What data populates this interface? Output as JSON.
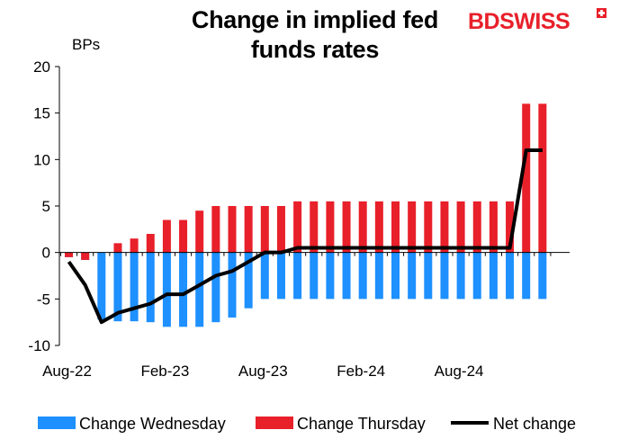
{
  "logo": {
    "bold_part": "BD",
    "rest_part": "SWISS"
  },
  "chart_data": {
    "type": "bar",
    "title_lines": [
      "Change in implied fed",
      "funds rates"
    ],
    "ylabel": "BPs",
    "ylim": [
      -10,
      20
    ],
    "yticks": [
      20,
      15,
      10,
      5,
      0,
      -5,
      -10
    ],
    "x_tick_labels": [
      {
        "index": 0,
        "label": "Aug-22"
      },
      {
        "index": 6,
        "label": "Feb-23"
      },
      {
        "index": 12,
        "label": "Aug-23"
      },
      {
        "index": 18,
        "label": "Feb-24"
      },
      {
        "index": 24,
        "label": "Aug-24"
      }
    ],
    "categories": [
      "Aug-22",
      "Sep-22",
      "Oct-22",
      "Nov-22",
      "Dec-22",
      "Jan-23",
      "Feb-23",
      "Mar-23",
      "Apr-23",
      "May-23",
      "Jun-23",
      "Jul-23",
      "Aug-23",
      "Sep-23",
      "Oct-23",
      "Nov-23",
      "Dec-23",
      "Jan-24",
      "Feb-24",
      "Mar-24",
      "Apr-24",
      "May-24",
      "Jun-24",
      "Jul-24",
      "Aug-24",
      "Sep-24",
      "Oct-24",
      "Nov-24",
      "Dec-24",
      "Jan-25"
    ],
    "series": [
      {
        "name": "Change Wednesday",
        "type": "bar",
        "color": "#1E90FF",
        "values": [
          -0.5,
          -0.8,
          -7.2,
          -7.4,
          -7.4,
          -7.5,
          -8,
          -8,
          -8,
          -7.5,
          -7,
          -6,
          -5,
          -5,
          -5,
          -5,
          -5,
          -5,
          -5,
          -5,
          -5,
          -5,
          -5,
          -5,
          -5,
          -5,
          -5,
          -5,
          -5,
          -5
        ]
      },
      {
        "name": "Change Thursday",
        "type": "bar",
        "color": "#E8202A",
        "values": [
          -0.5,
          -0.8,
          0,
          1,
          1.5,
          2,
          3.5,
          3.5,
          4.5,
          5,
          5,
          5,
          5,
          5,
          5.5,
          5.5,
          5.5,
          5.5,
          5.5,
          5.5,
          5.5,
          5.5,
          5.5,
          5.5,
          5.5,
          5.5,
          5.5,
          5.5,
          16,
          16
        ]
      },
      {
        "name": "Net change",
        "type": "line",
        "color": "#000000",
        "values": [
          -1,
          -3.5,
          -7.5,
          -6.5,
          -6,
          -5.5,
          -4.5,
          -4.5,
          -3.5,
          -2.5,
          -2,
          -1,
          0,
          0,
          0.5,
          0.5,
          0.5,
          0.5,
          0.5,
          0.5,
          0.5,
          0.5,
          0.5,
          0.5,
          0.5,
          0.5,
          0.5,
          0.5,
          11,
          11
        ]
      }
    ],
    "legend_position": "bottom",
    "grid": false
  }
}
